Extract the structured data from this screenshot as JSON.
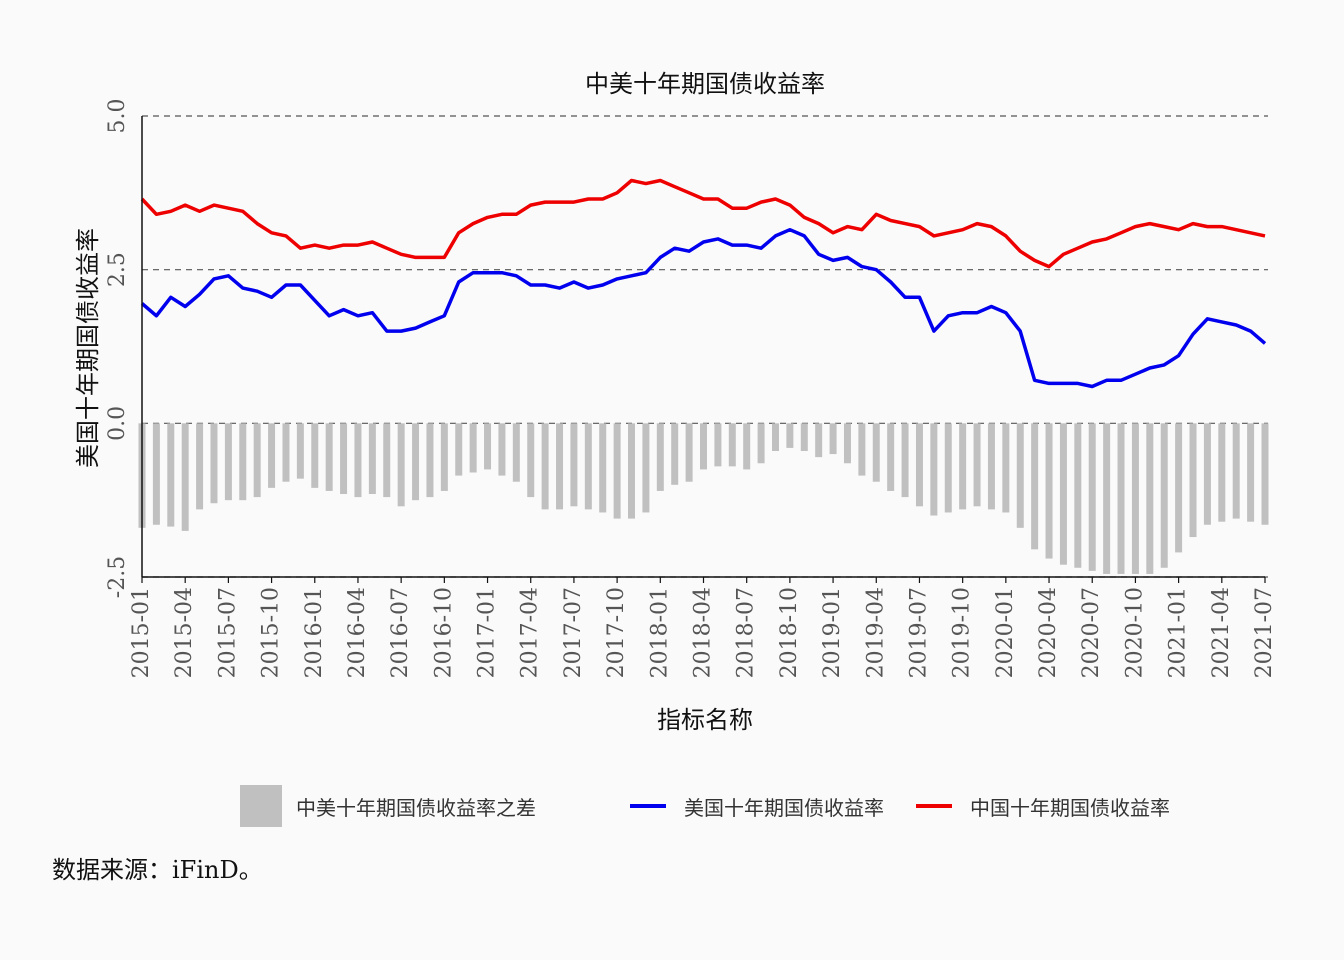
{
  "chart_data": {
    "type": "line",
    "title": "中美十年期国债收益率",
    "xlabel": "指标名称",
    "ylabel": "美国十年期国债收益率",
    "ylim": [
      -2.5,
      5.0
    ],
    "y_ticks": [
      "-2.5",
      "0.0",
      "2.5",
      "5.0"
    ],
    "x_tick_labels": [
      "2015-01",
      "2015-04",
      "2015-07",
      "2015-10",
      "2016-01",
      "2016-04",
      "2016-07",
      "2016-10",
      "2017-01",
      "2017-04",
      "2017-07",
      "2017-10",
      "2018-01",
      "2018-04",
      "2018-07",
      "2018-10",
      "2019-01",
      "2019-04",
      "2019-07",
      "2019-10",
      "2020-01",
      "2020-04",
      "2020-07",
      "2020-10",
      "2021-01",
      "2021-04",
      "2021-07"
    ],
    "grid": "horizontal dashed",
    "legend_position": "bottom",
    "x": [
      "2015-01",
      "2015-02",
      "2015-03",
      "2015-04",
      "2015-05",
      "2015-06",
      "2015-07",
      "2015-08",
      "2015-09",
      "2015-10",
      "2015-11",
      "2015-12",
      "2016-01",
      "2016-02",
      "2016-03",
      "2016-04",
      "2016-05",
      "2016-06",
      "2016-07",
      "2016-08",
      "2016-09",
      "2016-10",
      "2016-11",
      "2016-12",
      "2017-01",
      "2017-02",
      "2017-03",
      "2017-04",
      "2017-05",
      "2017-06",
      "2017-07",
      "2017-08",
      "2017-09",
      "2017-10",
      "2017-11",
      "2017-12",
      "2018-01",
      "2018-02",
      "2018-03",
      "2018-04",
      "2018-05",
      "2018-06",
      "2018-07",
      "2018-08",
      "2018-09",
      "2018-10",
      "2018-11",
      "2018-12",
      "2019-01",
      "2019-02",
      "2019-03",
      "2019-04",
      "2019-05",
      "2019-06",
      "2019-07",
      "2019-08",
      "2019-09",
      "2019-10",
      "2019-11",
      "2019-12",
      "2020-01",
      "2020-02",
      "2020-03",
      "2020-04",
      "2020-05",
      "2020-06",
      "2020-07",
      "2020-08",
      "2020-09",
      "2020-10",
      "2020-11",
      "2020-12",
      "2021-01",
      "2021-02",
      "2021-03",
      "2021-04",
      "2021-05",
      "2021-06",
      "2021-07"
    ],
    "series": [
      {
        "name": "中美十年期国债收益率之差",
        "kind": "bar",
        "color": "#c0c0c0",
        "values": [
          -1.7,
          -1.65,
          -1.68,
          -1.75,
          -1.4,
          -1.3,
          -1.25,
          -1.25,
          -1.2,
          -1.05,
          -0.95,
          -0.9,
          -1.05,
          -1.1,
          -1.15,
          -1.2,
          -1.15,
          -1.2,
          -1.35,
          -1.25,
          -1.2,
          -1.1,
          -0.85,
          -0.8,
          -0.75,
          -0.85,
          -0.95,
          -1.2,
          -1.4,
          -1.4,
          -1.35,
          -1.4,
          -1.45,
          -1.55,
          -1.55,
          -1.45,
          -1.1,
          -1.0,
          -0.95,
          -0.75,
          -0.7,
          -0.7,
          -0.75,
          -0.65,
          -0.45,
          -0.4,
          -0.45,
          -0.55,
          -0.5,
          -0.65,
          -0.85,
          -0.95,
          -1.1,
          -1.2,
          -1.35,
          -1.5,
          -1.45,
          -1.4,
          -1.35,
          -1.4,
          -1.45,
          -1.7,
          -2.05,
          -2.2,
          -2.3,
          -2.35,
          -2.4,
          -2.45,
          -2.45,
          -2.45,
          -2.45,
          -2.35,
          -2.1,
          -1.85,
          -1.65,
          -1.6,
          -1.55,
          -1.6,
          -1.65
        ]
      },
      {
        "name": "美国十年期国债收益率",
        "kind": "line",
        "color": "#0000ee",
        "values": [
          1.95,
          1.75,
          2.05,
          1.9,
          2.1,
          2.35,
          2.4,
          2.2,
          2.15,
          2.05,
          2.25,
          2.25,
          2.0,
          1.75,
          1.85,
          1.75,
          1.8,
          1.5,
          1.5,
          1.55,
          1.65,
          1.75,
          2.3,
          2.45,
          2.45,
          2.45,
          2.4,
          2.25,
          2.25,
          2.2,
          2.3,
          2.2,
          2.25,
          2.35,
          2.4,
          2.45,
          2.7,
          2.85,
          2.8,
          2.95,
          3.0,
          2.9,
          2.9,
          2.85,
          3.05,
          3.15,
          3.05,
          2.75,
          2.65,
          2.7,
          2.55,
          2.5,
          2.3,
          2.05,
          2.05,
          1.5,
          1.75,
          1.8,
          1.8,
          1.9,
          1.8,
          1.5,
          0.7,
          0.65,
          0.65,
          0.65,
          0.6,
          0.7,
          0.7,
          0.8,
          0.9,
          0.95,
          1.1,
          1.45,
          1.7,
          1.65,
          1.6,
          1.5,
          1.3
        ]
      },
      {
        "name": "中国十年期国债收益率",
        "kind": "line",
        "color": "#ee0000",
        "values": [
          3.65,
          3.4,
          3.45,
          3.55,
          3.45,
          3.55,
          3.5,
          3.45,
          3.25,
          3.1,
          3.05,
          2.85,
          2.9,
          2.85,
          2.9,
          2.9,
          2.95,
          2.85,
          2.75,
          2.7,
          2.7,
          2.7,
          3.1,
          3.25,
          3.35,
          3.4,
          3.4,
          3.55,
          3.6,
          3.6,
          3.6,
          3.65,
          3.65,
          3.75,
          3.95,
          3.9,
          3.95,
          3.85,
          3.75,
          3.65,
          3.65,
          3.5,
          3.5,
          3.6,
          3.65,
          3.55,
          3.35,
          3.25,
          3.1,
          3.2,
          3.15,
          3.4,
          3.3,
          3.25,
          3.2,
          3.05,
          3.1,
          3.15,
          3.25,
          3.2,
          3.05,
          2.8,
          2.65,
          2.55,
          2.75,
          2.85,
          2.95,
          3.0,
          3.1,
          3.2,
          3.25,
          3.2,
          3.15,
          3.25,
          3.2,
          3.2,
          3.15,
          3.1,
          3.05
        ]
      }
    ]
  },
  "legend": {
    "item1": "中美十年期国债收益率之差",
    "item2": "美国十年期国债收益率",
    "item3": "中国十年期国债收益率"
  },
  "source": "数据来源：iFinD。"
}
